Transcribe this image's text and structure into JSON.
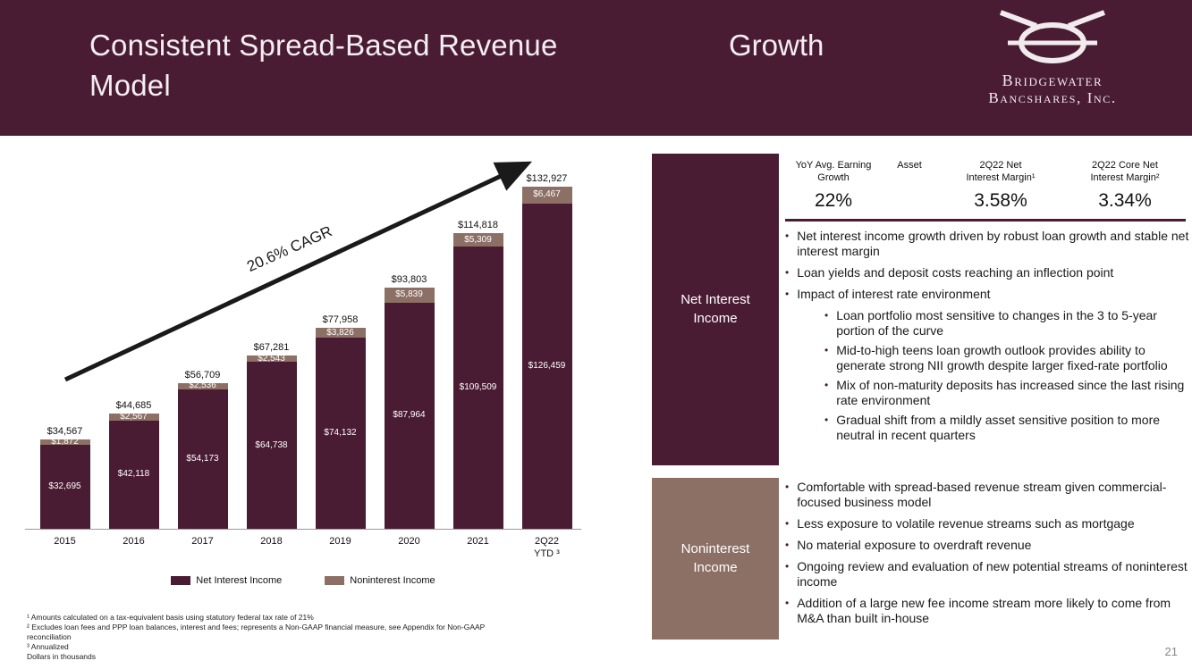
{
  "colors": {
    "maroon": "#4a1c33",
    "taupe": "#8c7065"
  },
  "header": {
    "title": "Consistent Spread-Based Revenue Model",
    "title_right": "Growth",
    "logo_line1": "Bridgewater",
    "logo_line2": "Bancshares, Inc."
  },
  "chart_data": {
    "type": "bar",
    "stacked": true,
    "title": "",
    "annotation": "20.6% CAGR",
    "units": "Dollars in thousands",
    "value_prefix": "$",
    "grid": false,
    "legend_position": "bottom",
    "ylim": [
      0,
      140000
    ],
    "categories": [
      "2015",
      "2016",
      "2017",
      "2018",
      "2019",
      "2020",
      "2021",
      "2Q22 YTD³"
    ],
    "category_lines": [
      [
        "2015"
      ],
      [
        "2016"
      ],
      [
        "2017"
      ],
      [
        "2018"
      ],
      [
        "2019"
      ],
      [
        "2020"
      ],
      [
        "2021"
      ],
      [
        "2Q22",
        "YTD ³"
      ]
    ],
    "series": [
      {
        "name": "Net Interest Income",
        "color": "#4a1c33",
        "values": [
          32695,
          42118,
          54173,
          64738,
          74132,
          87964,
          109509,
          126459
        ]
      },
      {
        "name": "Noninterest Income",
        "color": "#8c7065",
        "values": [
          1872,
          2567,
          2536,
          2543,
          3826,
          5839,
          5309,
          6467
        ]
      }
    ],
    "totals": [
      34567,
      44685,
      56709,
      67281,
      77958,
      93803,
      114818,
      132927
    ]
  },
  "net_interest": {
    "label": "Net Interest Income",
    "metrics": {
      "header_lines": [
        [
          "YoY Avg. Earning",
          "Growth"
        ],
        [
          "Asset"
        ],
        [
          "2Q22 Net",
          "Interest Margin¹"
        ],
        [
          "2Q22 Core Net",
          "Interest Margin²"
        ]
      ],
      "values": [
        "22%",
        "",
        "3.58%",
        "3.34%"
      ]
    },
    "bullets": [
      {
        "text": "Net interest income growth driven by robust loan growth and stable net interest margin",
        "children": []
      },
      {
        "text": "Loan yields and deposit costs reaching an inflection point",
        "children": []
      },
      {
        "text": "Impact of interest rate environment",
        "children": [
          "Loan portfolio most sensitive to changes in the 3 to 5-year portion of the curve",
          "Mid-to-high teens loan growth outlook provides ability to generate strong NII growth despite larger fixed-rate portfolio",
          "Mix of non-maturity deposits has increased since the last rising rate environment",
          "Gradual shift from a mildly asset sensitive position to more neutral in recent quarters"
        ]
      }
    ]
  },
  "noninterest": {
    "label": "Noninterest Income",
    "bullets": [
      {
        "text": "Comfortable with spread-based revenue stream given commercial-focused business model",
        "children": []
      },
      {
        "text": "Less exposure to volatile revenue streams such as mortgage",
        "children": []
      },
      {
        "text": "No material exposure to overdraft revenue",
        "children": []
      },
      {
        "text": "Ongoing review and evaluation of new potential streams of noninterest income",
        "children": []
      },
      {
        "text": "Addition of a large new fee income stream more likely to come from M&A than built in-house",
        "children": []
      }
    ]
  },
  "footnotes": [
    "¹ Amounts calculated on a tax-equivalent basis using statutory federal tax rate of 21%",
    "² Excludes loan fees and PPP loan balances, interest and fees; represents a Non-GAAP financial measure, see Appendix for Non-GAAP reconciliation",
    "³ Annualized",
    "Dollars in thousands"
  ],
  "page_number": "21"
}
